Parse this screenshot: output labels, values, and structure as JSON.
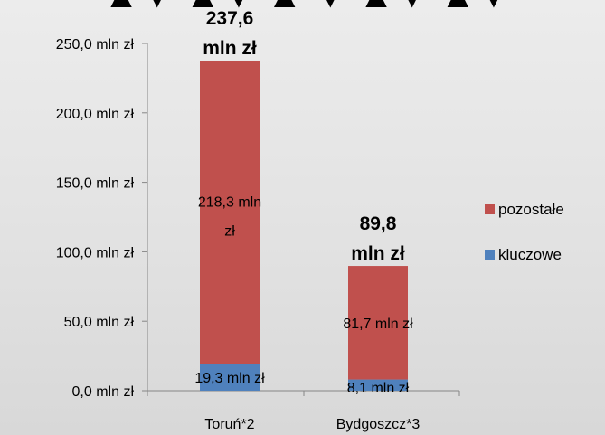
{
  "chart_data": {
    "type": "bar",
    "stacked": true,
    "categories": [
      "Toruń*2",
      "Bydgoszcz*3"
    ],
    "series": [
      {
        "name": "kluczowe",
        "color": "#4f81bd",
        "values": [
          19.3,
          8.1
        ],
        "labels": [
          "19,3 mln zł",
          "8,1 mln zł"
        ]
      },
      {
        "name": "pozostałe",
        "color": "#c0504d",
        "values": [
          218.3,
          81.7
        ],
        "labels": [
          "218,3 mln zł",
          "81,7 mln zł"
        ]
      }
    ],
    "totals": [
      237.6,
      89.8
    ],
    "total_labels": [
      [
        "237,6",
        "mln zł"
      ],
      [
        "89,8",
        "mln zł"
      ]
    ],
    "ylim": [
      0,
      250
    ],
    "yticks": [
      0,
      50,
      100,
      150,
      200,
      250
    ],
    "ytick_labels": [
      "0,0 mln zł",
      "50,0 mln zł",
      "100,0 mln zł",
      "150,0 mln zł",
      "200,0 mln zł",
      "250,0 mln zł"
    ],
    "grid": false,
    "legend_position": "right",
    "legend_order": [
      "pozostałe",
      "kluczowe"
    ]
  }
}
